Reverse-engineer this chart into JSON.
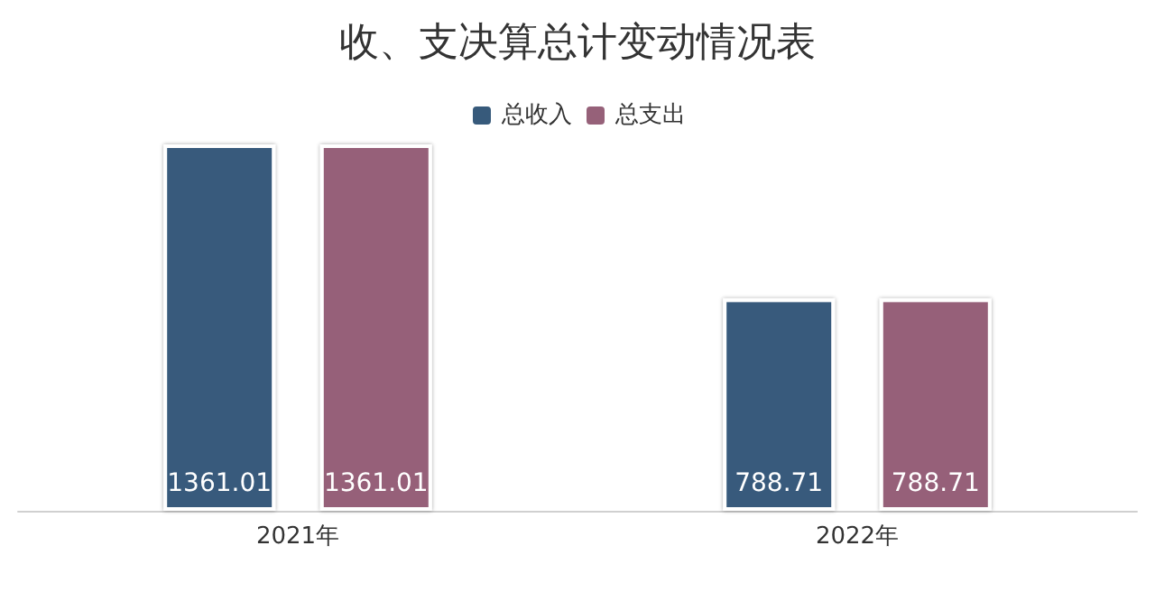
{
  "chart_data": {
    "type": "bar",
    "title": "收、支决算总计变动情况表",
    "categories": [
      "2021年",
      "2022年"
    ],
    "series": [
      {
        "name": "总收入",
        "color": "#375a7b",
        "values": [
          1361.01,
          788.71
        ]
      },
      {
        "name": "总支出",
        "color": "#966179",
        "values": [
          1361.01,
          788.71
        ]
      }
    ],
    "data_labels": true,
    "legend": "top"
  }
}
